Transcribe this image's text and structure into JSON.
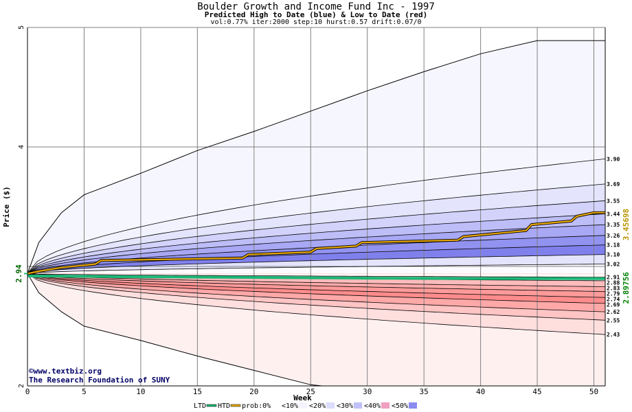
{
  "header": {
    "title": "Boulder Growth and Income Fund Inc - 1997",
    "subtitle": "Predicted High to Date (blue) &  Low to Date (red)",
    "params": "vol:0.77% iter:2000 step:10 hurst:0.57 drift:0.07/0"
  },
  "credit": {
    "line1": "©www.textbiz.org",
    "line2": "The Research Foundation of SUNY"
  },
  "chart_data": {
    "type": "area",
    "xlabel": "Week",
    "ylabel": "Price ($)",
    "xlim": [
      0,
      51
    ],
    "ylim": [
      2,
      5
    ],
    "x_ticks": [
      0,
      5,
      10,
      15,
      20,
      25,
      30,
      35,
      40,
      45,
      50
    ],
    "y_ticks": [
      2,
      3,
      4,
      5
    ],
    "y_tick_labels": [
      "2",
      "",
      "4",
      "5"
    ],
    "start_price": 2.94,
    "start_price_label": "2.94",
    "right_value_labels": [
      {
        "text": "3.45698",
        "color": "#b89200"
      },
      {
        "text": "2.89756",
        "color": "#008000"
      }
    ],
    "high_to_date_bands": [
      {
        "label": "3.90",
        "end": 3.9,
        "fill": "#f2f2fe"
      },
      {
        "label": "3.69",
        "end": 3.69,
        "fill": "#e4e4fd"
      },
      {
        "label": "3.55",
        "end": 3.55,
        "fill": "#d2d2fb"
      },
      {
        "label": "3.44",
        "end": 3.44,
        "fill": "#bdbdf8"
      },
      {
        "label": "3.35",
        "end": 3.35,
        "fill": "#a8a8f4"
      },
      {
        "label": "3.26",
        "end": 3.26,
        "fill": "#9292f0"
      },
      {
        "label": "3.18",
        "end": 3.18,
        "fill": "#8080ec"
      },
      {
        "label": "3.10",
        "end": 3.1,
        "fill": "#e4e4fd"
      },
      {
        "label": "3.02",
        "end": 3.02,
        "fill": "#fbfbff"
      },
      {
        "label": "2.91",
        "end": 2.91,
        "fill": "#fff8f8"
      }
    ],
    "low_to_date_bands": [
      {
        "label": "2.88",
        "end": 2.88,
        "fill": "#fff6f6"
      },
      {
        "label": "2.83",
        "end": 2.83,
        "fill": "#ffbcbc"
      },
      {
        "label": "2.79",
        "end": 2.79,
        "fill": "#ffaaaa"
      },
      {
        "label": "2.74",
        "end": 2.74,
        "fill": "#ff9a9a"
      },
      {
        "label": "2.69",
        "end": 2.69,
        "fill": "#ff8c8c"
      },
      {
        "label": "2.62",
        "end": 2.62,
        "fill": "#ffa8a8"
      },
      {
        "label": "2.55",
        "end": 2.55,
        "fill": "#ffc4c4"
      },
      {
        "label": "2.43",
        "end": 2.43,
        "fill": "#ffdede"
      }
    ],
    "outer_high_envelope": {
      "weeks": [
        0,
        1,
        3,
        5,
        10,
        15,
        20,
        25,
        30,
        35,
        40,
        45,
        51
      ],
      "values": [
        2.94,
        3.2,
        3.45,
        3.6,
        3.78,
        3.97,
        4.13,
        4.3,
        4.47,
        4.63,
        4.78,
        4.89,
        4.89
      ]
    },
    "outer_low_envelope": {
      "weeks": [
        0,
        1,
        3,
        5,
        10,
        15,
        20,
        25,
        26
      ],
      "values": [
        2.94,
        2.78,
        2.62,
        2.5,
        2.38,
        2.25,
        2.13,
        2.01,
        2.0
      ]
    },
    "outer_low_fill": "#fff0f0",
    "ltd_line": {
      "name": "LTD",
      "color": "#1bb877",
      "weeks": [
        0,
        10,
        20,
        30,
        40,
        51
      ],
      "values": [
        2.92,
        2.913,
        2.908,
        2.902,
        2.899,
        2.898
      ]
    },
    "htd_line": {
      "name": "HTD",
      "color": "#e8a800",
      "weeks": [
        0,
        1,
        3,
        6,
        6.5,
        19,
        19.5,
        25,
        25.5,
        29,
        29.5,
        38,
        38.5,
        44,
        44.5,
        48,
        48.5,
        50,
        51
      ],
      "values": [
        2.94,
        2.96,
        2.99,
        3.02,
        3.05,
        3.07,
        3.1,
        3.12,
        3.15,
        3.17,
        3.2,
        3.22,
        3.25,
        3.3,
        3.35,
        3.38,
        3.42,
        3.45,
        3.45
      ]
    },
    "legend": [
      {
        "label": "LTD",
        "kind": "line",
        "color": "#1bb877"
      },
      {
        "label": "HTD",
        "kind": "line",
        "color": "#e8a800"
      },
      {
        "label": "prob:0%",
        "kind": "swatch",
        "color": "#ffffff"
      },
      {
        "label": "<10%",
        "kind": "swatch",
        "color": "#f4f4fe"
      },
      {
        "label": "<20%",
        "kind": "swatch",
        "color": "#dcdcfb"
      },
      {
        "label": "<30%",
        "kind": "swatch",
        "color": "#c0c0f8"
      },
      {
        "label": "<40%",
        "kind": "swatch",
        "color": "#f0a0c0"
      },
      {
        "label": "<50%",
        "kind": "swatch",
        "color": "#8c8cf0"
      }
    ]
  }
}
